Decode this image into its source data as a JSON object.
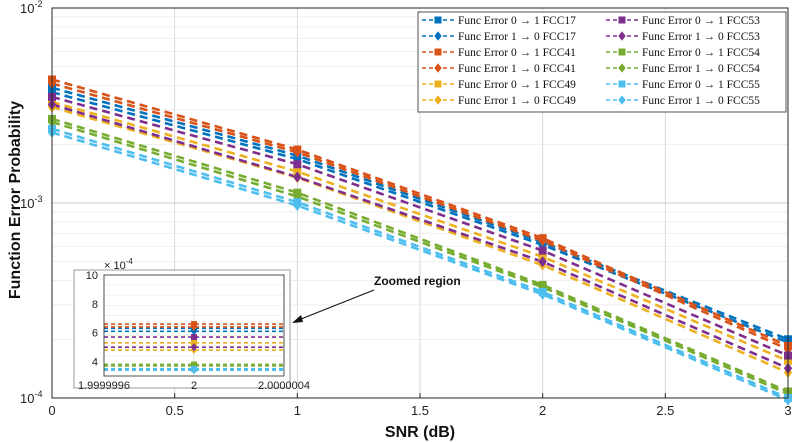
{
  "chart_data": {
    "type": "line",
    "xlabel": "SNR (dB)",
    "ylabel": "Function Error Probability",
    "yscale": "log",
    "xlim": [
      0,
      3
    ],
    "ylim": [
      0.0001,
      0.01
    ],
    "grid": true,
    "x": [
      0,
      1,
      2,
      3
    ],
    "x_ticks": [
      "0",
      "0.5",
      "1",
      "1.5",
      "2",
      "2.5",
      "3"
    ],
    "y_ticks": [
      {
        "value": 0.01,
        "mantissa": "10",
        "exp": "-2"
      },
      {
        "value": 0.001,
        "mantissa": "10",
        "exp": "-3"
      },
      {
        "value": 0.0001,
        "mantissa": "10",
        "exp": "-4"
      }
    ],
    "legend_position": "top-right",
    "series": [
      {
        "name": "Func Error 0 → 1 FCC17",
        "color": "#0072BD",
        "marker": "square",
        "values": [
          0.0039,
          0.00175,
          0.00063,
          0.0002
        ]
      },
      {
        "name": "Func Error 1 → 0 FCC17",
        "color": "#0072BD",
        "marker": "diamond",
        "values": [
          0.0037,
          0.00168,
          0.00061,
          0.000193
        ]
      },
      {
        "name": "Func Error 0 → 1 FCC41",
        "color": "#D95319",
        "marker": "square",
        "values": [
          0.0043,
          0.00188,
          0.00066,
          0.000185
        ]
      },
      {
        "name": "Func Error 1 → 0 FCC41",
        "color": "#D95319",
        "marker": "diamond",
        "values": [
          0.0041,
          0.00182,
          0.00064,
          0.000178
        ]
      },
      {
        "name": "Func Error 0 → 1 FCC49",
        "color": "#EDB120",
        "marker": "square",
        "values": [
          0.0033,
          0.00145,
          0.00053,
          0.000155
        ]
      },
      {
        "name": "Func Error 1 → 0 FCC49",
        "color": "#EDB120",
        "marker": "diamond",
        "values": [
          0.0031,
          0.00135,
          0.00048,
          0.000135
        ]
      },
      {
        "name": "Func Error 0 → 1 FCC53",
        "color": "#7E2F8E",
        "marker": "square",
        "values": [
          0.0035,
          0.00158,
          0.00057,
          0.000165
        ]
      },
      {
        "name": "Func Error 1 → 0 FCC53",
        "color": "#7E2F8E",
        "marker": "diamond",
        "values": [
          0.0032,
          0.00136,
          0.0005,
          0.000142
        ]
      },
      {
        "name": "Func Error 0 → 1 FCC54",
        "color": "#77AC30",
        "marker": "square",
        "values": [
          0.0027,
          0.00113,
          0.00038,
          0.000108
        ]
      },
      {
        "name": "Func Error 1 → 0 FCC54",
        "color": "#77AC30",
        "marker": "diamond",
        "values": [
          0.0026,
          0.00108,
          0.00037,
          0.000105
        ]
      },
      {
        "name": "Func Error 0 → 1 FCC55",
        "color": "#4DBEEE",
        "marker": "square",
        "values": [
          0.0024,
          0.00101,
          0.00035,
          0.0001
        ]
      },
      {
        "name": "Func Error 1 → 0 FCC55",
        "color": "#4DBEEE",
        "marker": "diamond",
        "values": [
          0.0023,
          0.00097,
          0.00034,
          9.75e-05
        ]
      }
    ],
    "inset": {
      "x_ticks": [
        "1.9999996",
        "2",
        "2.0000004"
      ],
      "y_ticks": [
        "4",
        "6",
        "8",
        "10"
      ],
      "y_multiplier_mantissa": "× 10",
      "y_multiplier_exp": "-4",
      "ylim": [
        0.0003,
        0.001
      ]
    },
    "annotation": "Zoomed region"
  }
}
